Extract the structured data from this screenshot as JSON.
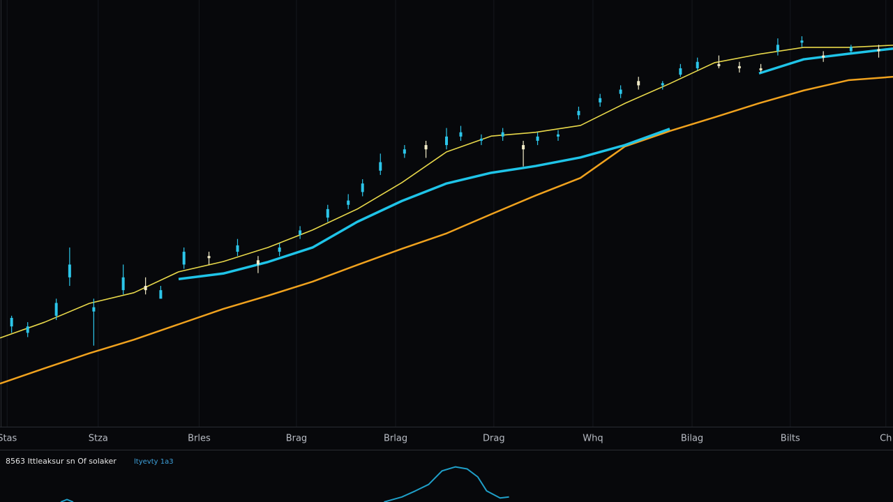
{
  "chart_data": [
    {
      "type": "candlestick",
      "xlim": [
        0,
        100
      ],
      "ylim": [
        0,
        100
      ],
      "grid": true,
      "xticks": [
        {
          "value": 0.8,
          "label": "Stas"
        },
        {
          "value": 11,
          "label": "Stza"
        },
        {
          "value": 22.3,
          "label": "Brles"
        },
        {
          "value": 33.2,
          "label": "Brag"
        },
        {
          "value": 44.3,
          "label": "Brlag"
        },
        {
          "value": 55.3,
          "label": "Drag"
        },
        {
          "value": 66.4,
          "label": "Whq"
        },
        {
          "value": 77.5,
          "label": "Bilag"
        },
        {
          "value": 88.5,
          "label": "Bilts"
        },
        {
          "value": 99.2,
          "label": "Ch"
        }
      ],
      "candles": {
        "up_color": "#2cc6ea",
        "down_color": "#f2ecc8",
        "x": [
          1.3,
          3.1,
          6.3,
          7.8,
          10.5,
          13.8,
          16.3,
          18,
          20.6,
          23.4,
          26.6,
          28.9,
          31.3,
          33.6,
          36.7,
          39,
          40.6,
          42.6,
          45.3,
          47.7,
          50,
          51.6,
          53.9,
          56.3,
          58.6,
          60.2,
          62.5,
          64.8,
          67.2,
          69.5,
          71.5,
          74.2,
          76.2,
          78.1,
          80.5,
          82.8,
          85.2,
          87.1,
          89.8,
          92.2,
          95.3,
          98.4
        ],
        "open": [
          23.5,
          22,
          26,
          35,
          27,
          32,
          33,
          30,
          38,
          40,
          41,
          39,
          41,
          45,
          49,
          52,
          55,
          60,
          64,
          66,
          66,
          68,
          67,
          68,
          66,
          67,
          68,
          73,
          76,
          78,
          81,
          80,
          82.5,
          84,
          85,
          84.5,
          84,
          88,
          90,
          87,
          88,
          88.5
        ],
        "high": [
          26,
          24.5,
          30,
          42,
          30,
          38,
          35,
          33,
          42,
          41,
          44,
          40,
          43,
          47,
          52,
          54.5,
          58,
          64,
          66,
          67,
          70,
          70.5,
          68.5,
          70,
          67,
          69,
          69.5,
          75,
          78,
          80,
          82,
          81,
          85,
          86.5,
          87,
          85.5,
          85,
          91,
          91.5,
          88,
          89.5,
          89.5
        ],
        "low": [
          22,
          21,
          25,
          33,
          19,
          31,
          31,
          30,
          37,
          38,
          40,
          36,
          40,
          44,
          48,
          51,
          54,
          59,
          63,
          63,
          65,
          67,
          66,
          67,
          61,
          66,
          67,
          72,
          75,
          77,
          79,
          79,
          82,
          83.5,
          84,
          83,
          83,
          87,
          89,
          85.5,
          87.5,
          86.5
        ],
        "close": [
          25.5,
          23.5,
          29,
          38,
          28,
          35,
          32,
          32,
          41,
          39.5,
          42.5,
          38,
          42,
          46,
          51,
          53,
          57,
          62,
          65,
          65,
          68,
          69,
          67.5,
          69,
          65,
          68,
          68.5,
          74,
          77,
          79,
          80,
          80.5,
          84,
          85.5,
          84.5,
          84,
          83.5,
          89.5,
          90.5,
          86.5,
          89,
          88
        ]
      },
      "x": [
        0,
        5,
        10,
        15,
        20,
        25,
        30,
        35,
        40,
        45,
        50,
        55,
        60,
        65,
        70,
        75,
        80,
        85,
        90,
        95,
        100
      ],
      "series": [
        {
          "color": "#f0a21e",
          "values": [
            10.1,
            13.7,
            17.2,
            20.4,
            24.0,
            27.6,
            30.7,
            34.0,
            37.9,
            41.7,
            45.3,
            49.8,
            54.2,
            58.3,
            65.7,
            69.3,
            72.5,
            75.8,
            78.8,
            81.2,
            82.0
          ]
        },
        {
          "color": "#1fc4e8",
          "values": [
            null,
            null,
            null,
            null,
            34.6,
            35.9,
            38.6,
            42.0,
            48.0,
            52.9,
            57.0,
            59.5,
            61.1,
            63.1,
            66.0,
            69.8,
            null,
            82.8,
            86.1,
            87.4,
            88.6
          ]
        },
        {
          "color": "#e8d84a",
          "values": [
            20.8,
            24.5,
            28.9,
            31.4,
            36.3,
            38.7,
            42.0,
            46.1,
            51.0,
            57.2,
            64.4,
            68.1,
            69.0,
            70.6,
            75.8,
            80.4,
            85.3,
            87.3,
            88.9,
            88.9,
            89.4
          ]
        }
      ]
    },
    {
      "type": "line",
      "title": "8563  Ittleaksur sn Of solaker",
      "subtitle": "ltyevty 1a3",
      "title_color": "#e6e6e6",
      "subtitle_color": "#3ea2dc",
      "xlim": [
        0,
        100
      ],
      "ylim": [
        0,
        100
      ],
      "color": "#1f9fc8",
      "x": [
        6.8,
        7.5,
        8.2,
        41.4,
        43,
        45,
        46.5,
        48,
        49.5,
        51,
        52.3,
        53.5,
        54.5,
        56,
        57
      ],
      "values": [
        0,
        5,
        0,
        null,
        0,
        10,
        22,
        35,
        62,
        70,
        66,
        50,
        22,
        8,
        10
      ]
    }
  ]
}
